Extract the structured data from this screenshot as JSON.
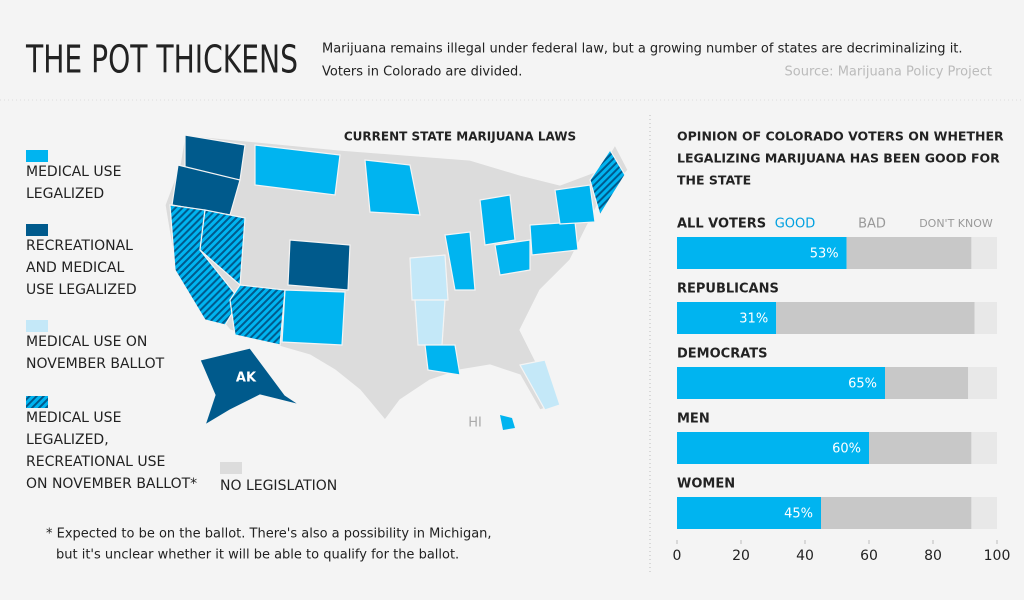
{
  "header": {
    "title": "THE POT THICKENS",
    "description": [
      "Marijuana remains illegal under federal law, but a growing number of states are decriminalizing it.",
      "Voters in Colorado are divided."
    ],
    "source": "Source: Marijuana Policy Project"
  },
  "map": {
    "title": "CURRENT STATE MARIJUANA LAWS",
    "legend": [
      {
        "label": [
          "MEDICAL USE",
          "LEGALIZED"
        ],
        "color": "#00b4f0"
      },
      {
        "label": [
          "RECREATIONAL",
          "AND MEDICAL",
          "USE LEGALIZED"
        ],
        "color": "#005a8c"
      },
      {
        "label": [
          "MEDICAL USE ON",
          "NOVEMBER BALLOT"
        ],
        "color": "#c4e8f8"
      },
      {
        "label": [
          "MEDICAL USE",
          "LEGALIZED,",
          "RECREATIONAL USE",
          "ON NOVEMBER BALLOT*"
        ],
        "color": "#1a8fd0",
        "style": "hatched"
      },
      {
        "label": [
          "NO LEGISLATION"
        ],
        "color": "#dcdcdc"
      }
    ],
    "labels": [
      "AK",
      "HI"
    ],
    "footnote": [
      "* Expected to be on the ballot. There's also a possibility in Michigan,",
      "but it's unclear whether it will be able to qualify for the ballot."
    ]
  },
  "chart_data": {
    "type": "bar",
    "orientation": "horizontal",
    "stacked": true,
    "title": [
      "OPINION OF COLORADO VOTERS ON WHETHER",
      "LEGALIZING MARIJUANA HAS BEEN GOOD FOR",
      "THE STATE"
    ],
    "categories": [
      "ALL VOTERS",
      "REPUBLICANS",
      "DEMOCRATS",
      "MEN",
      "WOMEN"
    ],
    "series": [
      {
        "name": "GOOD",
        "color": "#00b4f0",
        "values": [
          53,
          31,
          65,
          60,
          45
        ],
        "value_labels": [
          "53%",
          "31%",
          "65%",
          "60%",
          "45%"
        ]
      },
      {
        "name": "BAD",
        "color": "#c8c8c8",
        "values": [
          39,
          62,
          26,
          32,
          47
        ]
      },
      {
        "name": "DON'T KNOW",
        "color": "#e8e8e8",
        "values": [
          8,
          7,
          9,
          8,
          8
        ]
      }
    ],
    "xlim": [
      0,
      100
    ],
    "xticks": [
      0,
      20,
      40,
      60,
      80,
      100
    ]
  }
}
